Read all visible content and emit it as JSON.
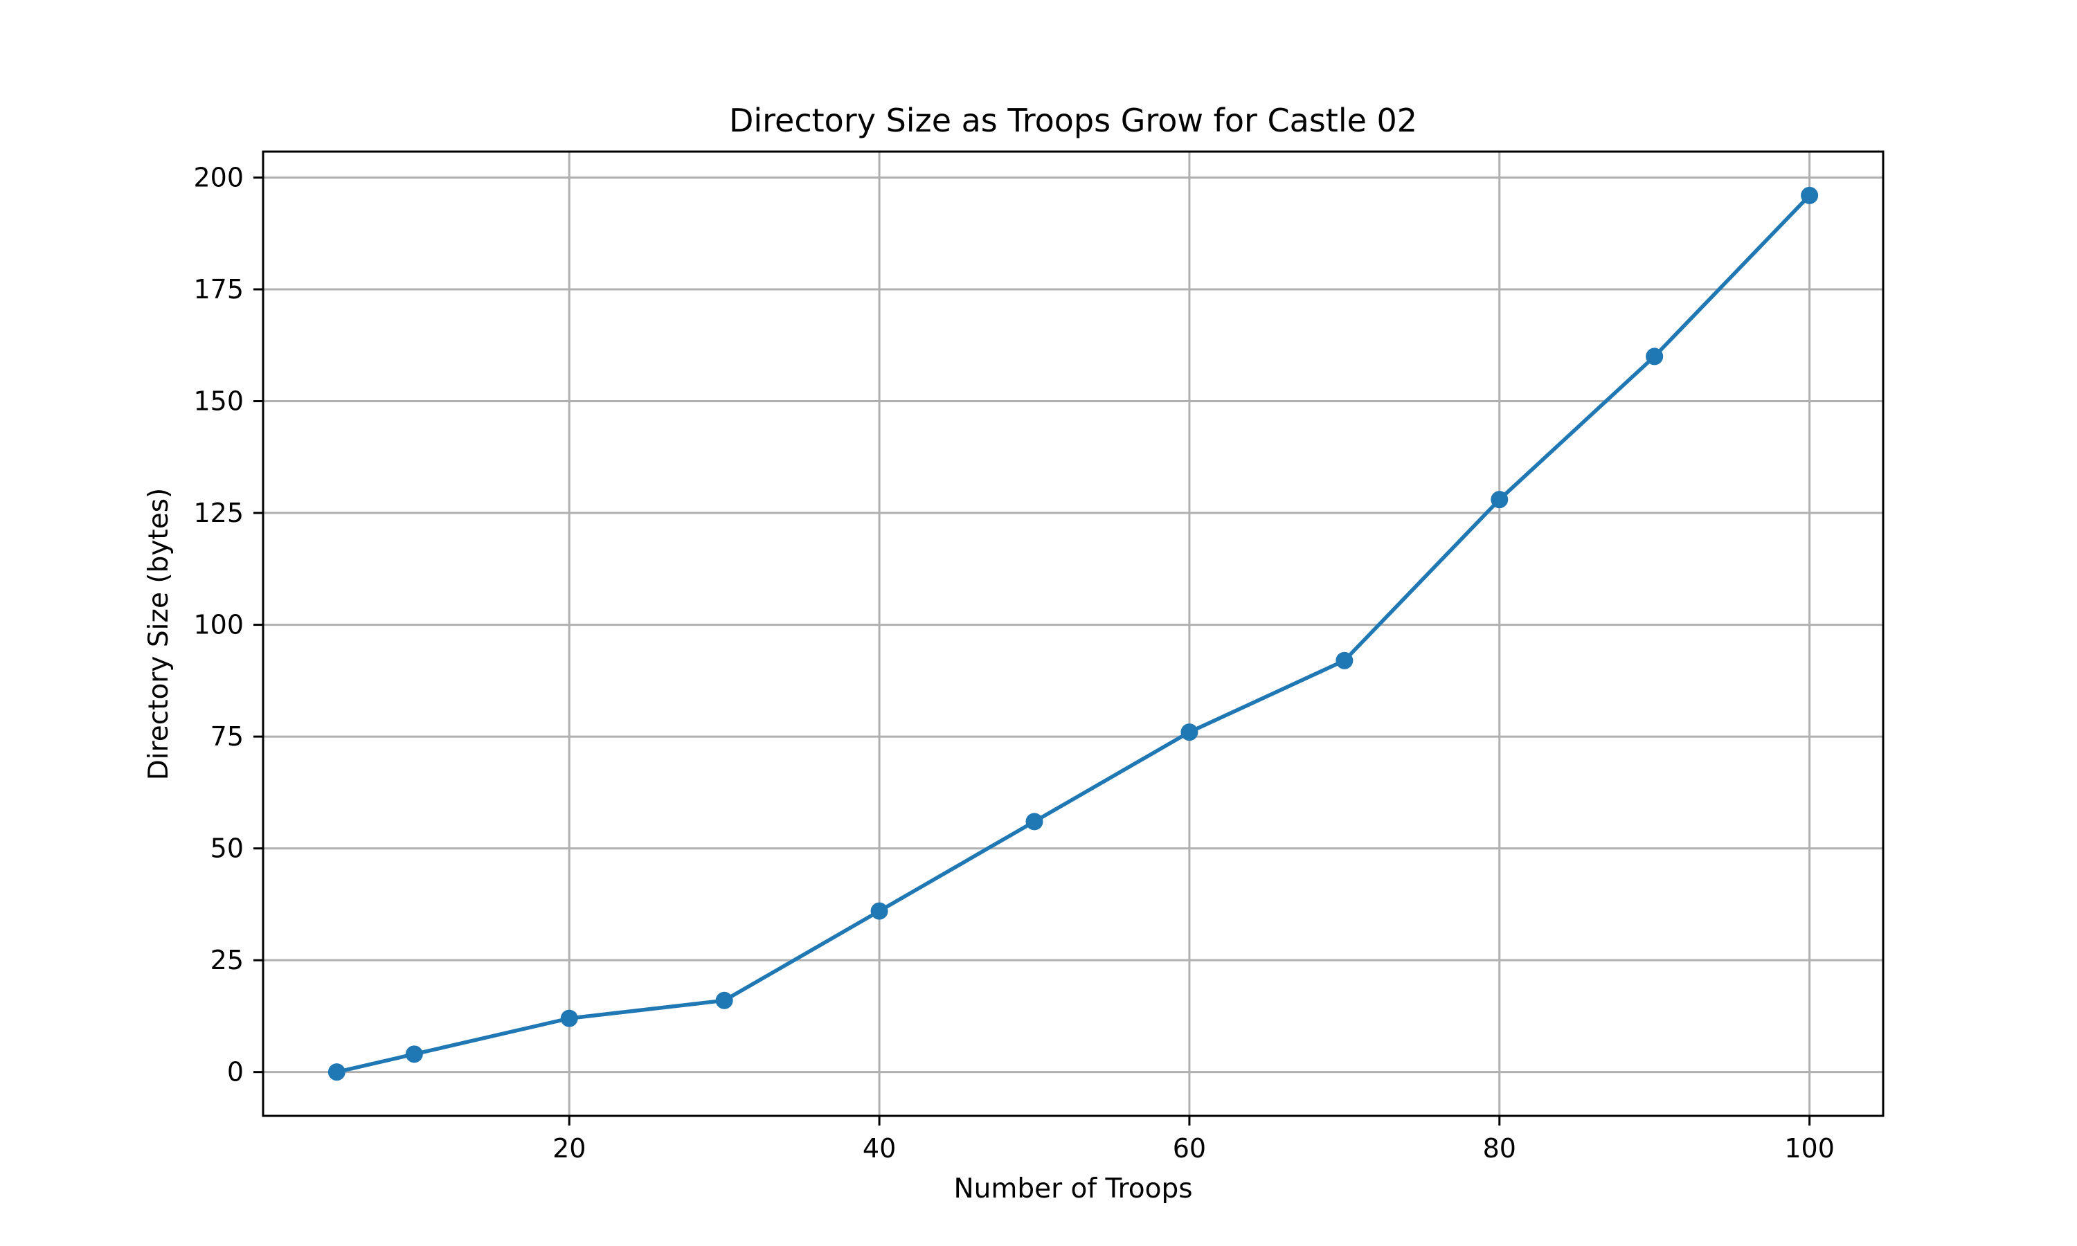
{
  "chart_data": {
    "type": "line",
    "title": "Directory Size as Troops Grow for Castle 02",
    "xlabel": "Number of Troops",
    "ylabel": "Directory Size (bytes)",
    "xlim": [
      0.25,
      104.75
    ],
    "ylim": [
      -9.8,
      205.8
    ],
    "xticks": [
      20,
      40,
      60,
      80,
      100
    ],
    "yticks": [
      0,
      25,
      50,
      75,
      100,
      125,
      150,
      175,
      200
    ],
    "grid": true,
    "marker": "circle",
    "series": [
      {
        "color": "#1f77b4",
        "x": [
          5,
          10,
          20,
          30,
          40,
          50,
          60,
          70,
          80,
          90,
          100
        ],
        "y": [
          0,
          4,
          12,
          16,
          36,
          56,
          76,
          92,
          128,
          160,
          196
        ]
      }
    ]
  }
}
